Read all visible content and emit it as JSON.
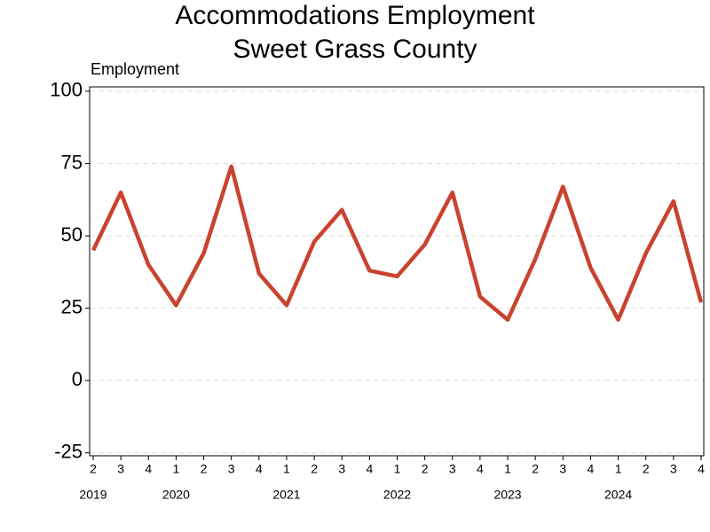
{
  "chart_data": {
    "type": "line",
    "title": "Accommodations Employment",
    "subtitle": "Sweet Grass County",
    "y_label": "Employment",
    "categories": [
      "2",
      "3",
      "4",
      "1",
      "2",
      "3",
      "4",
      "1",
      "2",
      "3",
      "4",
      "1",
      "2",
      "3",
      "4",
      "1",
      "2",
      "3",
      "4",
      "1",
      "2",
      "3",
      "4"
    ],
    "years": [
      "2019",
      null,
      null,
      "2020",
      null,
      null,
      null,
      "2021",
      null,
      null,
      null,
      "2022",
      null,
      null,
      null,
      "2023",
      null,
      null,
      null,
      "2024",
      null,
      null,
      null
    ],
    "series": [
      {
        "name": "Employment",
        "color": "#c9432f",
        "values": [
          45,
          65,
          40,
          26,
          44,
          74,
          37,
          26,
          48,
          59,
          38,
          36,
          47,
          65,
          29,
          21,
          42,
          67,
          39,
          21,
          44,
          62,
          27
        ]
      }
    ],
    "ylim": [
      -26,
      101.5
    ],
    "yticks": [
      -25,
      0,
      25,
      50,
      75,
      100
    ],
    "grid": true
  }
}
